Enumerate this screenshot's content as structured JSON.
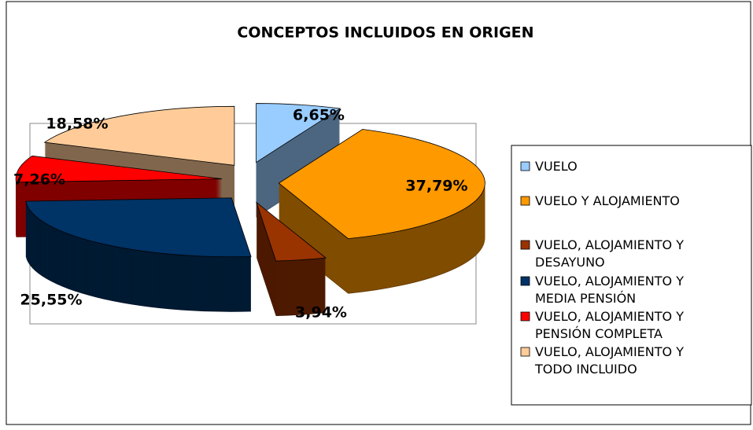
{
  "chart_data": {
    "type": "pie",
    "title": "CONCEPTOS INCLUIDOS EN ORIGEN",
    "categories": [
      "VUELO",
      "VUELO Y ALOJAMIENTO",
      "VUELO, ALOJAMIENTO Y DESAYUNO",
      "VUELO, ALOJAMIENTO Y MEDIA PENSIÓN",
      "VUELO, ALOJAMIENTO Y PENSIÓN COMPLETA",
      "VUELO, ALOJAMIENTO Y TODO INCLUIDO"
    ],
    "values": [
      6.65,
      37.79,
      3.94,
      25.55,
      7.26,
      18.58
    ],
    "value_labels": [
      "6,65%",
      "37,79%",
      "3,94%",
      "25,55%",
      "7,26%",
      "18,58%"
    ],
    "colors": [
      "#99ccff",
      "#ff9900",
      "#993300",
      "#003366",
      "#ff0000",
      "#ffcc99"
    ],
    "legend": "right"
  }
}
